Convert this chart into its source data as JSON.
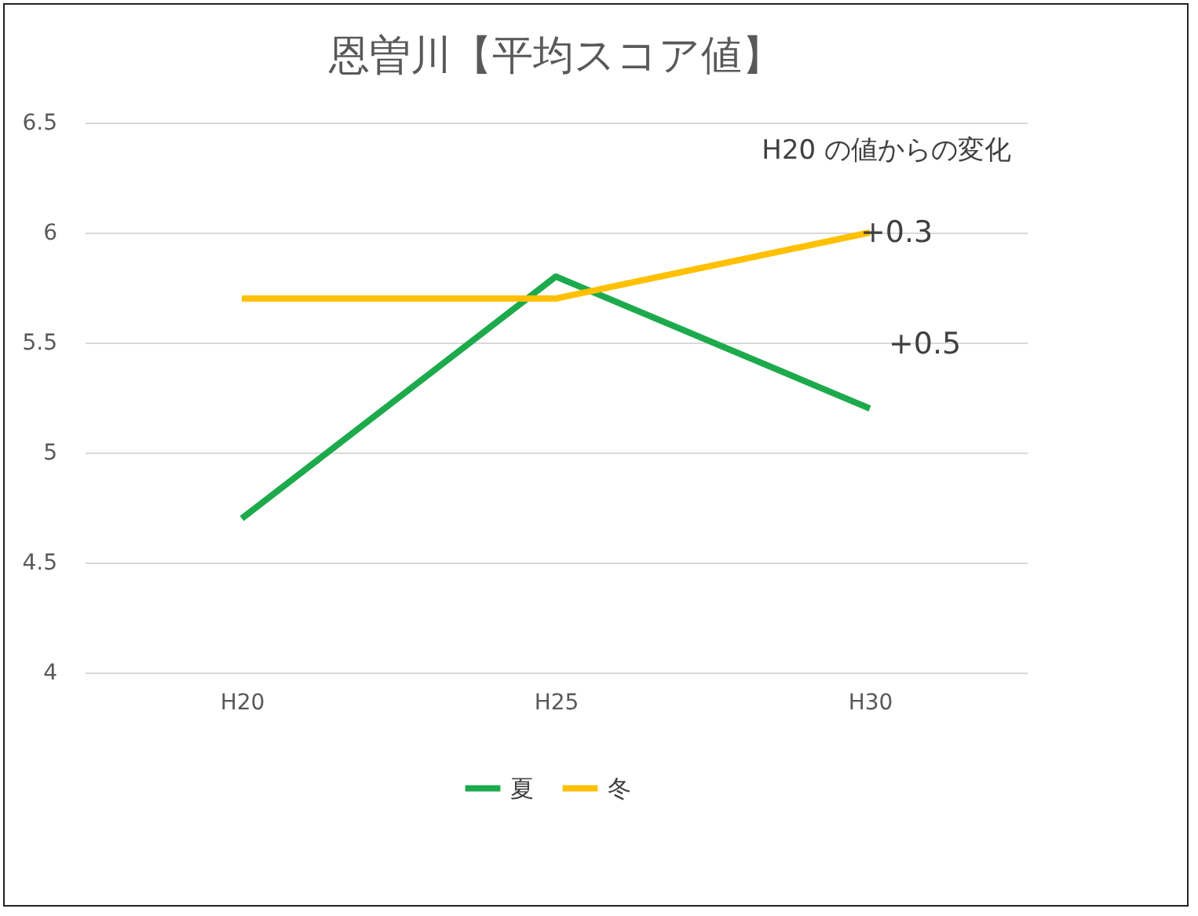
{
  "chart_data": {
    "type": "line",
    "title": "恩曽川【平均スコア値】",
    "categories": [
      "H20",
      "H25",
      "H30"
    ],
    "series": [
      {
        "name": "夏",
        "color": "#1daa4c",
        "values": [
          4.7,
          5.8,
          5.2
        ]
      },
      {
        "name": "冬",
        "color": "#ffc000",
        "values": [
          5.7,
          5.7,
          6.0
        ]
      }
    ],
    "ylim": [
      4,
      6.5
    ],
    "yticks": [
      4,
      4.5,
      5,
      5.5,
      6,
      6.5
    ],
    "grid": "y",
    "legend": "bottom",
    "line_style": "solid",
    "marker": "none",
    "annotations": [
      "H20 の値からの変化",
      {
        "text": "+0.3",
        "x": "H30",
        "y": 6
      },
      "+0.5"
    ]
  }
}
